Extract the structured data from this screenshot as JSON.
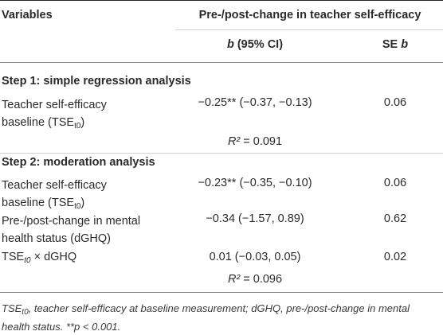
{
  "header": {
    "variables": "Variables",
    "group": "Pre-/post-change in teacher self-efficacy",
    "col_b_italic": "b",
    "col_b_rest": " (95% CI)",
    "col_se_prefix": "SE ",
    "col_se_italic": "b"
  },
  "step1": {
    "title": "Step 1: simple regression analysis",
    "rows": [
      {
        "var_line1": "Teacher self-efficacy",
        "var_line2_pre": "baseline (TSE",
        "var_line2_sub": "t0",
        "var_line2_post": ")",
        "b": "−0.25** (−0.37, −0.13)",
        "se": "0.06"
      }
    ],
    "r2_label": "R²",
    "r2_value": " = 0.091"
  },
  "step2": {
    "title": "Step 2: moderation analysis",
    "rows": [
      {
        "var_line1": "Teacher self-efficacy",
        "var_line2_pre": "baseline (TSE",
        "var_line2_sub": "t0",
        "var_line2_post": ")",
        "b": "−0.23** (−0.35, −0.10)",
        "se": "0.06"
      },
      {
        "var_line1": "Pre-/post-change in mental",
        "var_line2": "health status (dGHQ)",
        "b": "−0.34 (−1.57, 0.89)",
        "se": "0.62"
      },
      {
        "var_pre": "TSE",
        "var_sub": "t0",
        "var_post": " × dGHQ",
        "b": "0.01 (−0.03, 0.05)",
        "se": "0.02"
      }
    ],
    "r2_label": "R²",
    "r2_value": " = 0.096"
  },
  "footnote": {
    "abbr": "TSE",
    "abbr_sub": "t0",
    "text": ", teacher self-efficacy at baseline measurement; dGHQ, pre-/post-change in mental health status. **p < 0.001."
  }
}
